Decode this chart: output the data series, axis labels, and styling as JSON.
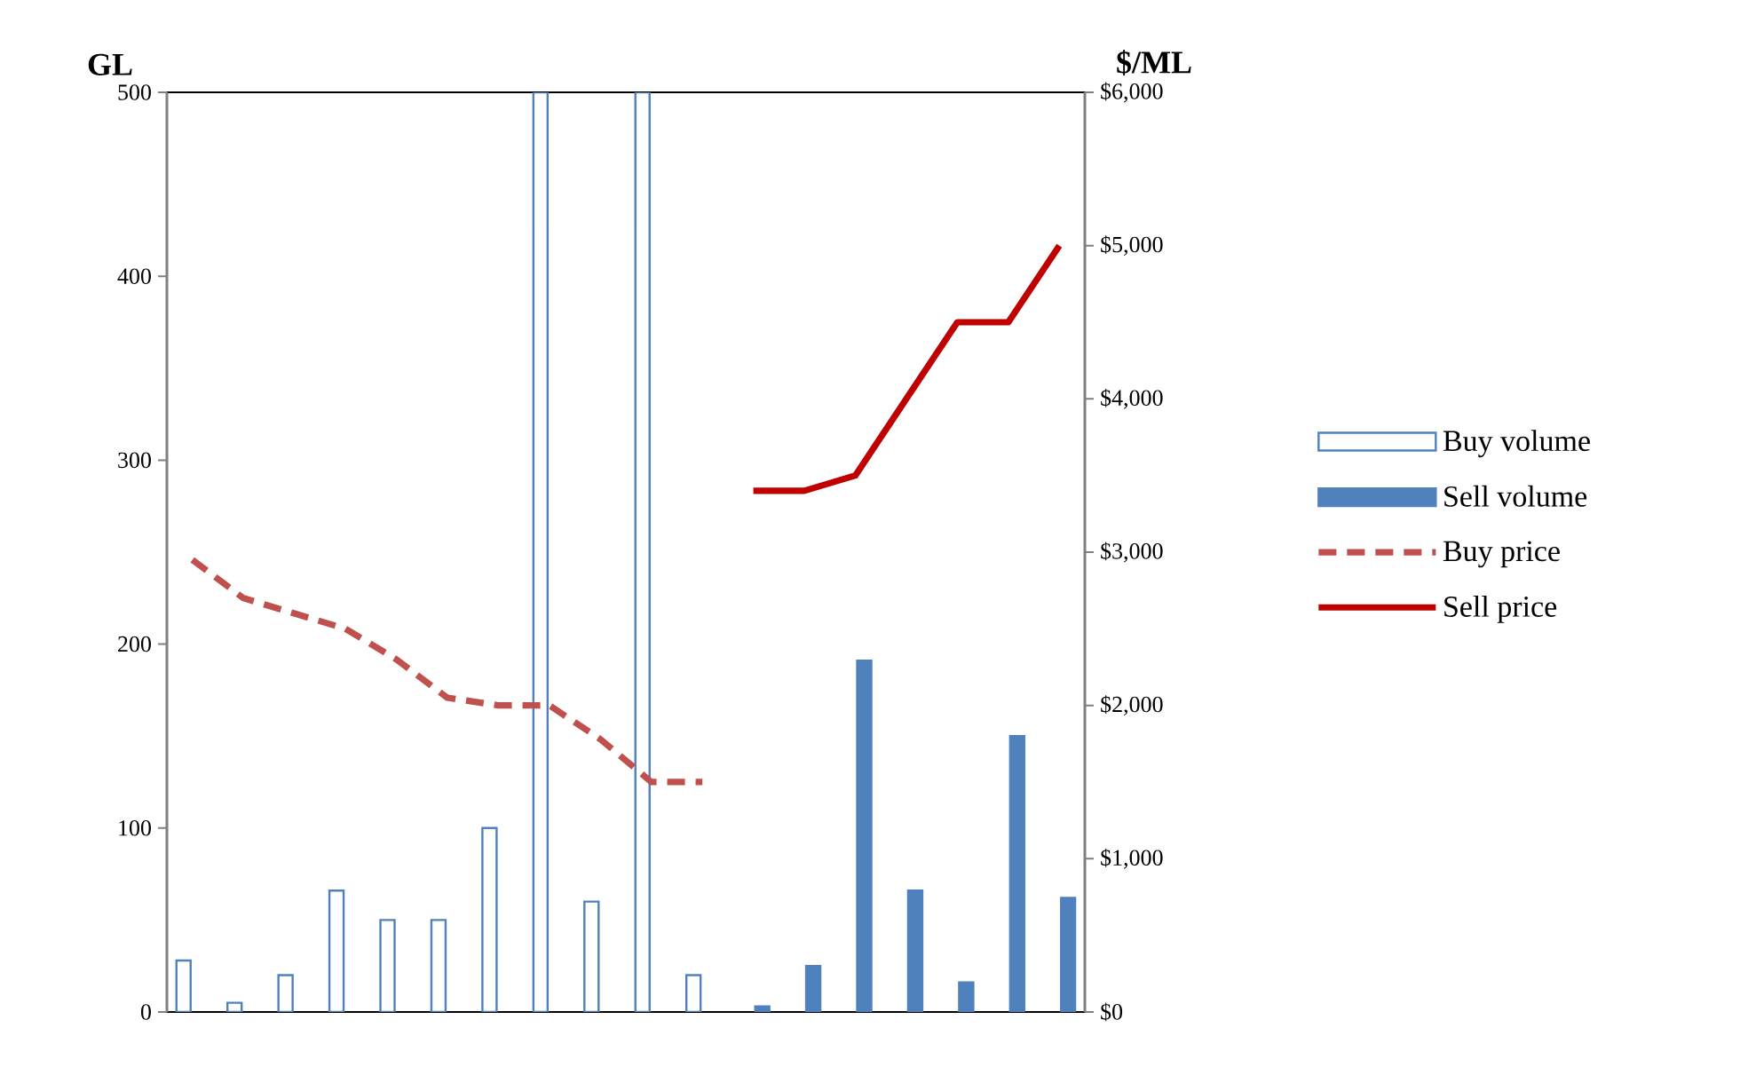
{
  "chart_data": {
    "type": "bar",
    "categories": [
      null,
      null,
      null,
      null,
      null,
      null,
      null,
      null,
      null,
      null,
      null,
      null,
      null,
      null,
      null,
      null,
      null,
      null
    ],
    "ylabel": "GL",
    "y2label": "$/ML",
    "ylim": [
      0,
      500
    ],
    "yticks": [
      0,
      100,
      200,
      300,
      400,
      500
    ],
    "y2lim": [
      0,
      6000
    ],
    "y2ticks": [
      {
        "value": 0,
        "label": "$0"
      },
      {
        "value": 1000,
        "label": "$1,000"
      },
      {
        "value": 2000,
        "label": "$2,000"
      },
      {
        "value": 3000,
        "label": "$3,000"
      },
      {
        "value": 4000,
        "label": "$4,000"
      },
      {
        "value": 5000,
        "label": "$5,000"
      },
      {
        "value": 6000,
        "label": "$6,000"
      }
    ],
    "legend": "right",
    "grid": false,
    "series": [
      {
        "name": "Buy volume",
        "color": "#4f81bd",
        "values": [
          28,
          5,
          20,
          66,
          50,
          50,
          100,
          500,
          60,
          500,
          20,
          null,
          null,
          null,
          null,
          null,
          null,
          null
        ]
      },
      {
        "name": "Sell volume",
        "color": "#4f81bd",
        "values": [
          null,
          null,
          null,
          null,
          null,
          null,
          null,
          null,
          null,
          null,
          null,
          3,
          25,
          191,
          66,
          16,
          150,
          62
        ]
      },
      {
        "name": "Buy price",
        "type": "line",
        "axis": "y2",
        "line_style": "dashed",
        "color": "#c0504d",
        "values": [
          2950,
          2700,
          2600,
          2500,
          2300,
          2050,
          2000,
          2000,
          1780,
          1500,
          1500,
          null,
          null,
          null,
          null,
          null,
          null,
          null
        ]
      },
      {
        "name": "Sell price",
        "type": "line",
        "axis": "y2",
        "line_style": "solid",
        "color": "#c00000",
        "values": [
          null,
          null,
          null,
          null,
          null,
          null,
          null,
          null,
          null,
          null,
          null,
          3400,
          3400,
          3500,
          4000,
          4500,
          4500,
          5000
        ]
      }
    ]
  }
}
